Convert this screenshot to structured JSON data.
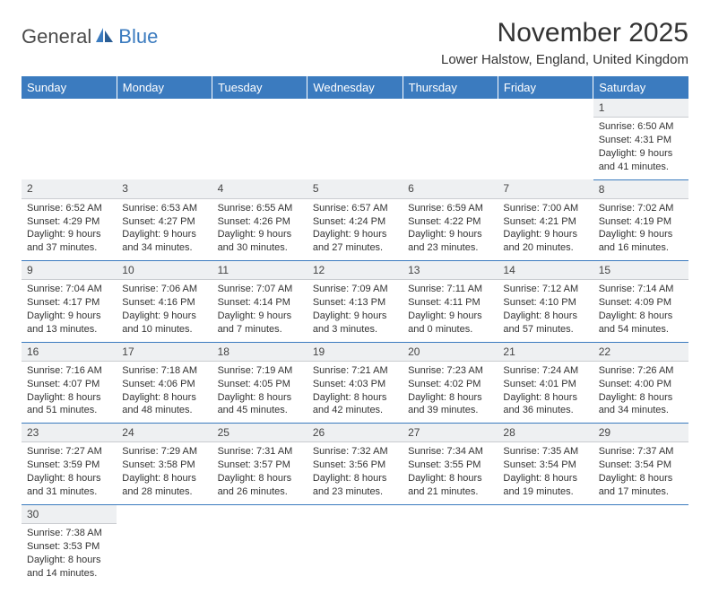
{
  "logo": {
    "part1": "General",
    "part2": "Blue"
  },
  "title": "November 2025",
  "location": "Lower Halstow, England, United Kingdom",
  "colors": {
    "header_bg": "#3b7bbf",
    "header_text": "#ffffff",
    "daynum_bg": "#eef0f2",
    "cell_border": "#3b7bbf",
    "text": "#333333",
    "logo_gray": "#4a4a4a",
    "logo_blue": "#3b7bbf"
  },
  "daysOfWeek": [
    "Sunday",
    "Monday",
    "Tuesday",
    "Wednesday",
    "Thursday",
    "Friday",
    "Saturday"
  ],
  "weeks": [
    {
      "nums": [
        "",
        "",
        "",
        "",
        "",
        "",
        "1"
      ],
      "cells": [
        null,
        null,
        null,
        null,
        null,
        null,
        {
          "sunrise": "Sunrise: 6:50 AM",
          "sunset": "Sunset: 4:31 PM",
          "day1": "Daylight: 9 hours",
          "day2": "and 41 minutes."
        }
      ]
    },
    {
      "nums": [
        "2",
        "3",
        "4",
        "5",
        "6",
        "7",
        "8"
      ],
      "cells": [
        {
          "sunrise": "Sunrise: 6:52 AM",
          "sunset": "Sunset: 4:29 PM",
          "day1": "Daylight: 9 hours",
          "day2": "and 37 minutes."
        },
        {
          "sunrise": "Sunrise: 6:53 AM",
          "sunset": "Sunset: 4:27 PM",
          "day1": "Daylight: 9 hours",
          "day2": "and 34 minutes."
        },
        {
          "sunrise": "Sunrise: 6:55 AM",
          "sunset": "Sunset: 4:26 PM",
          "day1": "Daylight: 9 hours",
          "day2": "and 30 minutes."
        },
        {
          "sunrise": "Sunrise: 6:57 AM",
          "sunset": "Sunset: 4:24 PM",
          "day1": "Daylight: 9 hours",
          "day2": "and 27 minutes."
        },
        {
          "sunrise": "Sunrise: 6:59 AM",
          "sunset": "Sunset: 4:22 PM",
          "day1": "Daylight: 9 hours",
          "day2": "and 23 minutes."
        },
        {
          "sunrise": "Sunrise: 7:00 AM",
          "sunset": "Sunset: 4:21 PM",
          "day1": "Daylight: 9 hours",
          "day2": "and 20 minutes."
        },
        {
          "sunrise": "Sunrise: 7:02 AM",
          "sunset": "Sunset: 4:19 PM",
          "day1": "Daylight: 9 hours",
          "day2": "and 16 minutes."
        }
      ]
    },
    {
      "nums": [
        "9",
        "10",
        "11",
        "12",
        "13",
        "14",
        "15"
      ],
      "cells": [
        {
          "sunrise": "Sunrise: 7:04 AM",
          "sunset": "Sunset: 4:17 PM",
          "day1": "Daylight: 9 hours",
          "day2": "and 13 minutes."
        },
        {
          "sunrise": "Sunrise: 7:06 AM",
          "sunset": "Sunset: 4:16 PM",
          "day1": "Daylight: 9 hours",
          "day2": "and 10 minutes."
        },
        {
          "sunrise": "Sunrise: 7:07 AM",
          "sunset": "Sunset: 4:14 PM",
          "day1": "Daylight: 9 hours",
          "day2": "and 7 minutes."
        },
        {
          "sunrise": "Sunrise: 7:09 AM",
          "sunset": "Sunset: 4:13 PM",
          "day1": "Daylight: 9 hours",
          "day2": "and 3 minutes."
        },
        {
          "sunrise": "Sunrise: 7:11 AM",
          "sunset": "Sunset: 4:11 PM",
          "day1": "Daylight: 9 hours",
          "day2": "and 0 minutes."
        },
        {
          "sunrise": "Sunrise: 7:12 AM",
          "sunset": "Sunset: 4:10 PM",
          "day1": "Daylight: 8 hours",
          "day2": "and 57 minutes."
        },
        {
          "sunrise": "Sunrise: 7:14 AM",
          "sunset": "Sunset: 4:09 PM",
          "day1": "Daylight: 8 hours",
          "day2": "and 54 minutes."
        }
      ]
    },
    {
      "nums": [
        "16",
        "17",
        "18",
        "19",
        "20",
        "21",
        "22"
      ],
      "cells": [
        {
          "sunrise": "Sunrise: 7:16 AM",
          "sunset": "Sunset: 4:07 PM",
          "day1": "Daylight: 8 hours",
          "day2": "and 51 minutes."
        },
        {
          "sunrise": "Sunrise: 7:18 AM",
          "sunset": "Sunset: 4:06 PM",
          "day1": "Daylight: 8 hours",
          "day2": "and 48 minutes."
        },
        {
          "sunrise": "Sunrise: 7:19 AM",
          "sunset": "Sunset: 4:05 PM",
          "day1": "Daylight: 8 hours",
          "day2": "and 45 minutes."
        },
        {
          "sunrise": "Sunrise: 7:21 AM",
          "sunset": "Sunset: 4:03 PM",
          "day1": "Daylight: 8 hours",
          "day2": "and 42 minutes."
        },
        {
          "sunrise": "Sunrise: 7:23 AM",
          "sunset": "Sunset: 4:02 PM",
          "day1": "Daylight: 8 hours",
          "day2": "and 39 minutes."
        },
        {
          "sunrise": "Sunrise: 7:24 AM",
          "sunset": "Sunset: 4:01 PM",
          "day1": "Daylight: 8 hours",
          "day2": "and 36 minutes."
        },
        {
          "sunrise": "Sunrise: 7:26 AM",
          "sunset": "Sunset: 4:00 PM",
          "day1": "Daylight: 8 hours",
          "day2": "and 34 minutes."
        }
      ]
    },
    {
      "nums": [
        "23",
        "24",
        "25",
        "26",
        "27",
        "28",
        "29"
      ],
      "cells": [
        {
          "sunrise": "Sunrise: 7:27 AM",
          "sunset": "Sunset: 3:59 PM",
          "day1": "Daylight: 8 hours",
          "day2": "and 31 minutes."
        },
        {
          "sunrise": "Sunrise: 7:29 AM",
          "sunset": "Sunset: 3:58 PM",
          "day1": "Daylight: 8 hours",
          "day2": "and 28 minutes."
        },
        {
          "sunrise": "Sunrise: 7:31 AM",
          "sunset": "Sunset: 3:57 PM",
          "day1": "Daylight: 8 hours",
          "day2": "and 26 minutes."
        },
        {
          "sunrise": "Sunrise: 7:32 AM",
          "sunset": "Sunset: 3:56 PM",
          "day1": "Daylight: 8 hours",
          "day2": "and 23 minutes."
        },
        {
          "sunrise": "Sunrise: 7:34 AM",
          "sunset": "Sunset: 3:55 PM",
          "day1": "Daylight: 8 hours",
          "day2": "and 21 minutes."
        },
        {
          "sunrise": "Sunrise: 7:35 AM",
          "sunset": "Sunset: 3:54 PM",
          "day1": "Daylight: 8 hours",
          "day2": "and 19 minutes."
        },
        {
          "sunrise": "Sunrise: 7:37 AM",
          "sunset": "Sunset: 3:54 PM",
          "day1": "Daylight: 8 hours",
          "day2": "and 17 minutes."
        }
      ]
    },
    {
      "nums": [
        "30",
        "",
        "",
        "",
        "",
        "",
        ""
      ],
      "cells": [
        {
          "sunrise": "Sunrise: 7:38 AM",
          "sunset": "Sunset: 3:53 PM",
          "day1": "Daylight: 8 hours",
          "day2": "and 14 minutes."
        },
        null,
        null,
        null,
        null,
        null,
        null
      ]
    }
  ]
}
